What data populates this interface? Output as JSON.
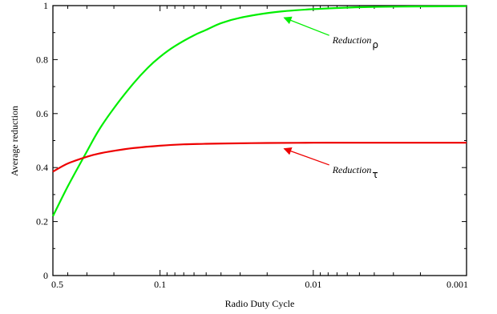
{
  "chart_data": {
    "type": "line",
    "xlabel": "Radio Duty Cycle",
    "ylabel": "Average reduction",
    "x_scale": "log",
    "x_reversed": true,
    "xlim": [
      0.5,
      0.001
    ],
    "ylim": [
      0,
      1
    ],
    "x_ticks": [
      {
        "value": 0.5,
        "label": "0.5"
      },
      {
        "value": 0.1,
        "label": "0.1"
      },
      {
        "value": 0.01,
        "label": "0.01"
      },
      {
        "value": 0.001,
        "label": "0.001"
      }
    ],
    "y_ticks": [
      {
        "value": 0,
        "label": "0"
      },
      {
        "value": 0.2,
        "label": "0.2"
      },
      {
        "value": 0.4,
        "label": "0.4"
      },
      {
        "value": 0.6,
        "label": "0.6"
      },
      {
        "value": 0.8,
        "label": "0.8"
      },
      {
        "value": 1,
        "label": "1"
      }
    ],
    "grid": false,
    "series": [
      {
        "color": "#00ee00",
        "x": [
          0.5,
          0.4,
          0.3,
          0.25,
          0.2,
          0.15,
          0.12,
          0.1,
          0.08,
          0.06,
          0.05,
          0.04,
          0.03,
          0.02,
          0.015,
          0.01,
          0.007,
          0.005,
          0.003,
          0.002,
          0.001
        ],
        "y": [
          0.22,
          0.33,
          0.46,
          0.54,
          0.62,
          0.71,
          0.77,
          0.81,
          0.85,
          0.89,
          0.91,
          0.935,
          0.955,
          0.972,
          0.98,
          0.987,
          0.991,
          0.994,
          0.996,
          0.997,
          0.998
        ]
      },
      {
        "color": "#ee0000",
        "x": [
          0.5,
          0.4,
          0.3,
          0.25,
          0.2,
          0.15,
          0.1,
          0.07,
          0.05,
          0.03,
          0.02,
          0.01,
          0.005,
          0.002,
          0.001
        ],
        "y": [
          0.385,
          0.415,
          0.44,
          0.452,
          0.462,
          0.472,
          0.481,
          0.486,
          0.488,
          0.49,
          0.491,
          0.492,
          0.492,
          0.492,
          0.492
        ]
      }
    ],
    "annotations": [
      {
        "text": "Reduction",
        "subscript": "ρ",
        "series_index": 0,
        "point_x": 0.0155,
        "point_y": 0.955,
        "label_x": 0.0075,
        "label_y": 0.86
      },
      {
        "text": "Reduction",
        "subscript": "τ",
        "series_index": 1,
        "point_x": 0.0155,
        "point_y": 0.47,
        "label_x": 0.0075,
        "label_y": 0.38
      }
    ]
  }
}
